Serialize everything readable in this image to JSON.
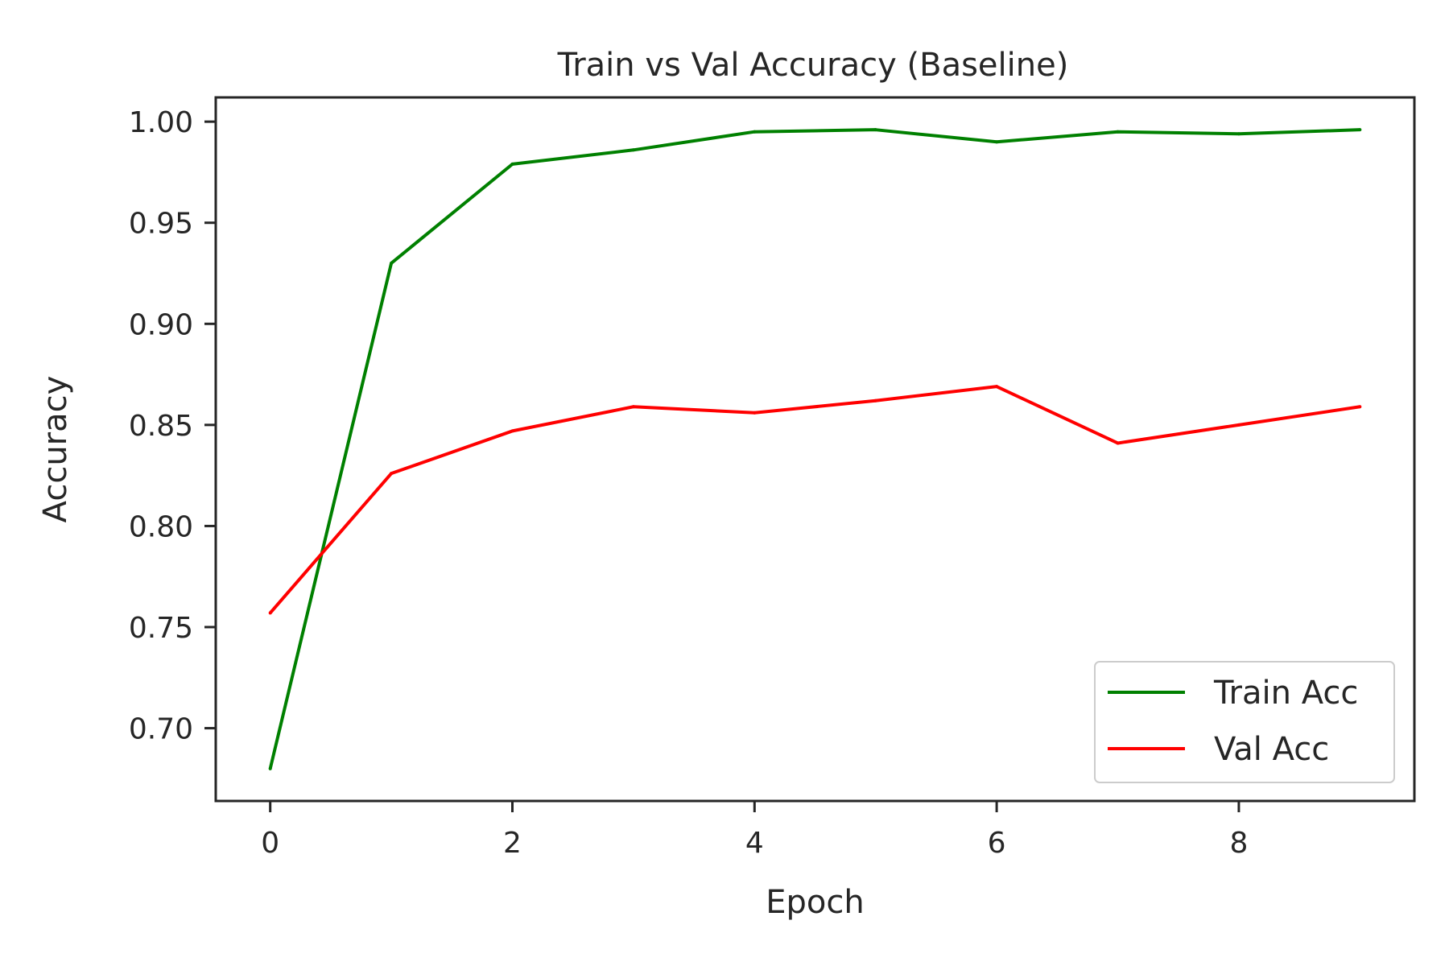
{
  "chart_data": {
    "type": "line",
    "title": "Train vs Val Accuracy (Baseline)",
    "xlabel": "Epoch",
    "ylabel": "Accuracy",
    "x": [
      0,
      1,
      2,
      3,
      4,
      5,
      6,
      7,
      8,
      9
    ],
    "xlim": [
      -0.45,
      9.45
    ],
    "ylim": [
      0.664,
      1.012
    ],
    "xticks": [
      0,
      2,
      4,
      6,
      8
    ],
    "yticks": [
      0.7,
      0.75,
      0.8,
      0.85,
      0.9,
      0.95,
      1.0
    ],
    "xtick_labels": [
      "0",
      "2",
      "4",
      "6",
      "8"
    ],
    "ytick_labels": [
      "0.70",
      "0.75",
      "0.80",
      "0.85",
      "0.90",
      "0.95",
      "1.00"
    ],
    "grid": false,
    "legend_position": "bottom-right",
    "series": [
      {
        "name": "Train Acc",
        "color": "#008000",
        "values": [
          0.68,
          0.93,
          0.979,
          0.986,
          0.995,
          0.996,
          0.99,
          0.995,
          0.994,
          0.996
        ]
      },
      {
        "name": "Val Acc",
        "color": "#ff0000",
        "values": [
          0.757,
          0.826,
          0.847,
          0.859,
          0.856,
          0.862,
          0.869,
          0.841,
          0.85,
          0.859
        ]
      }
    ]
  }
}
